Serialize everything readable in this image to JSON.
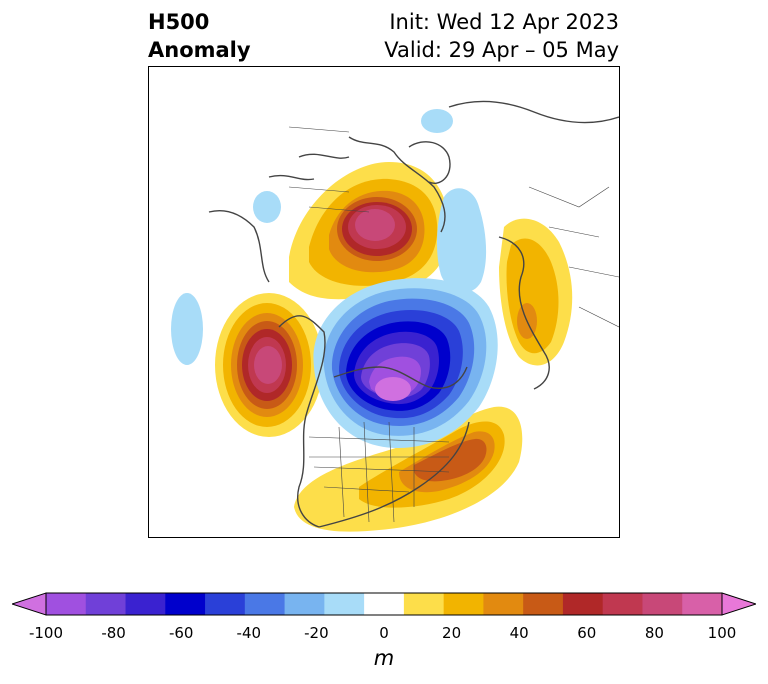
{
  "title": {
    "left_line1": "H500",
    "left_line2": "Anomaly",
    "right_line1": "Init: Wed 12 Apr 2023",
    "right_line2": "Valid: 29 Apr – 05 May"
  },
  "map": {
    "projection": "north-polar-stereographic",
    "field": "500 hPa geopotential height anomaly",
    "features": [
      {
        "name": "ridge-alaska-pacific",
        "sign": "positive",
        "peak_m": 90
      },
      {
        "name": "ridge-greenland-north-atlantic",
        "sign": "positive",
        "peak_m": 80
      },
      {
        "name": "ridge-southeast-us",
        "sign": "positive",
        "peak_m": 50
      },
      {
        "name": "ridge-europe",
        "sign": "positive",
        "peak_m": 40
      },
      {
        "name": "trough-central-canada",
        "sign": "negative",
        "peak_m": -100
      },
      {
        "name": "trough-north-pacific",
        "sign": "negative",
        "peak_m": -20
      },
      {
        "name": "trough-arctic-siberia",
        "sign": "negative",
        "peak_m": -30
      }
    ]
  },
  "colorbar": {
    "levels": [
      -100,
      -90,
      -80,
      -70,
      -60,
      -50,
      -40,
      -30,
      -20,
      -10,
      10,
      20,
      30,
      40,
      50,
      60,
      70,
      80,
      90,
      100
    ],
    "colors": [
      "#d070e0",
      "#a050e0",
      "#7040d8",
      "#3a22d0",
      "#0000cc",
      "#2a40d8",
      "#4a78e6",
      "#78b4f0",
      "#a8dcf8",
      "#ffffff",
      "#fdde4a",
      "#f2b400",
      "#e28a10",
      "#c85a16",
      "#b02828",
      "#c03850",
      "#c84878",
      "#d860a8",
      "#e878d8"
    ],
    "extend": "both",
    "tick_labels": [
      "-100",
      "-80",
      "-60",
      "-40",
      "-20",
      "0",
      "20",
      "40",
      "60",
      "80",
      "100"
    ],
    "label": "m"
  }
}
